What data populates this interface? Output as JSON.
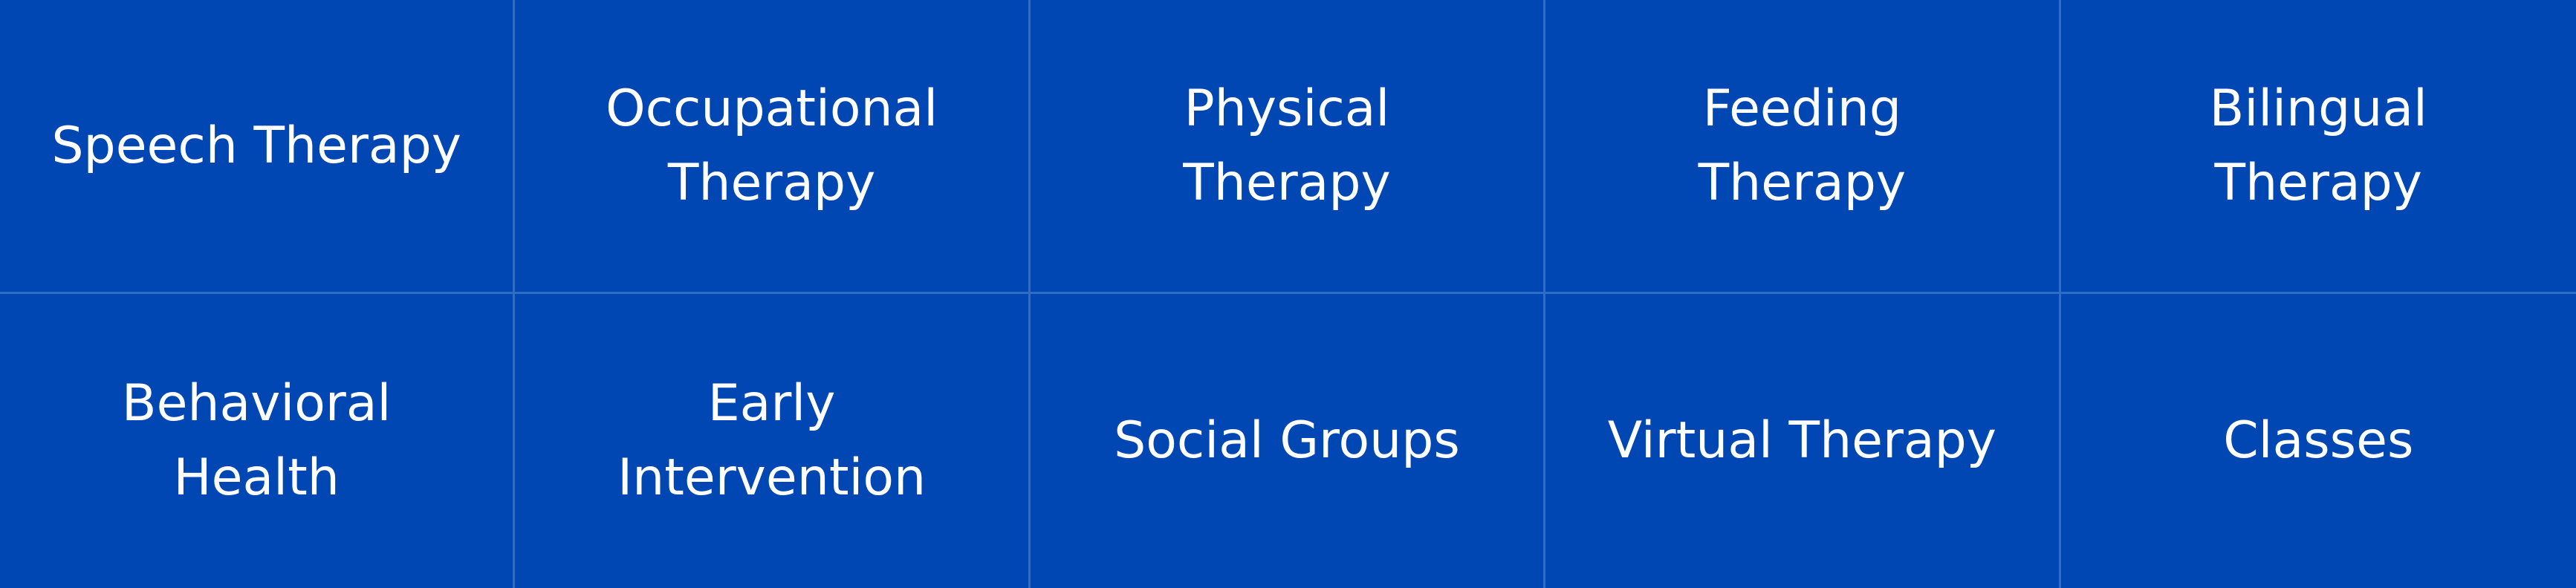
{
  "services": {
    "items": [
      {
        "label": "Speech Therapy"
      },
      {
        "label": "Occupational Therapy"
      },
      {
        "label": "Physical Therapy"
      },
      {
        "label": "Feeding Therapy"
      },
      {
        "label": "Bilingual Therapy"
      },
      {
        "label": "Behavioral Health"
      },
      {
        "label": "Early Intervention"
      },
      {
        "label": "Social Groups"
      },
      {
        "label": "Virtual Therapy"
      },
      {
        "label": "Classes"
      }
    ]
  },
  "colors": {
    "tile_background": "#0047b3",
    "divider": "#2f6cc6",
    "text": "#ffffff"
  }
}
